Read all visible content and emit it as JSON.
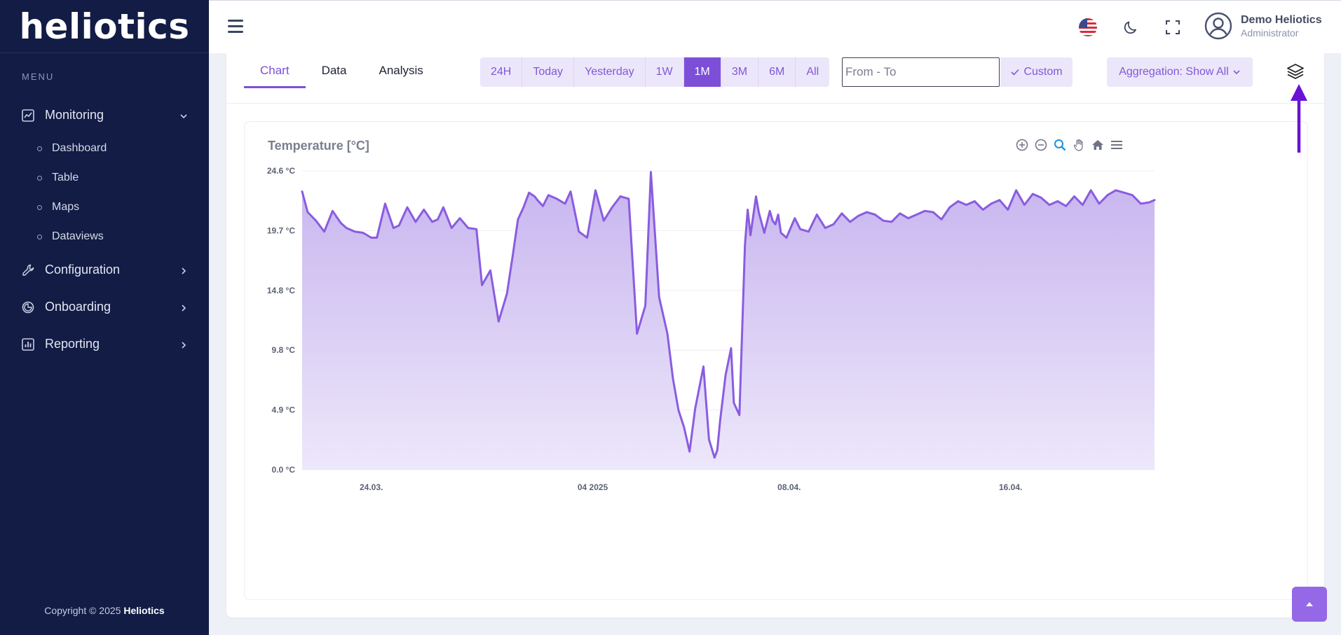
{
  "app": {
    "brand": "heliotics",
    "menu_heading": "MENU",
    "copyright_prefix": "Copyright © 2025 ",
    "copyright_brand": "Heliotics"
  },
  "sidebar": {
    "items": [
      {
        "label": "Monitoring",
        "icon": "chart-line-icon",
        "expanded": true,
        "children": [
          {
            "label": "Dashboard"
          },
          {
            "label": "Table"
          },
          {
            "label": "Maps"
          },
          {
            "label": "Dataviews"
          }
        ]
      },
      {
        "label": "Configuration",
        "icon": "wrench-icon"
      },
      {
        "label": "Onboarding",
        "icon": "onboarding-icon"
      },
      {
        "label": "Reporting",
        "icon": "report-icon"
      }
    ]
  },
  "header": {
    "user_name": "Demo Heliotics",
    "user_role": "Administrator",
    "icons": [
      "menu-icon",
      "us-flag-icon",
      "moon-icon",
      "fullscreen-icon",
      "user-avatar-icon"
    ]
  },
  "tabs": [
    {
      "label": "Chart",
      "active": true
    },
    {
      "label": "Data"
    },
    {
      "label": "Analysis"
    }
  ],
  "ranges": [
    {
      "label": "24H"
    },
    {
      "label": "Today"
    },
    {
      "label": "Yesterday"
    },
    {
      "label": "1W"
    },
    {
      "label": "1M",
      "active": true
    },
    {
      "label": "3M"
    },
    {
      "label": "6M"
    },
    {
      "label": "All"
    }
  ],
  "date_filter": {
    "placeholder": "From - To",
    "value": ""
  },
  "custom_label": "Custom",
  "aggregation_label": "Aggregation: Show All",
  "colors": {
    "accent": "#7d4fd8",
    "sidebar": "#121c45",
    "series": "#8a5ce0",
    "annotation": "#6a12d6"
  },
  "chart_data": {
    "type": "area",
    "title": "Temperature [°C]",
    "ylim": [
      0,
      24.6
    ],
    "y_ticks": [
      "24.6 °C",
      "19.7 °C",
      "14.8 °C",
      "9.8 °C",
      "4.9 °C",
      "0.0 °C"
    ],
    "x_ticks": [
      {
        "label": "24.03.",
        "day": 24
      },
      {
        "label": "04 2025",
        "day": 32
      },
      {
        "label": "08.04.",
        "day": 39.1
      },
      {
        "label": "16.04.",
        "day": 47.1
      }
    ],
    "xlim": [
      21.5,
      52.3
    ],
    "grid": true,
    "series": [
      {
        "x": [
          21.5,
          21.7,
          22.0,
          22.3,
          22.6,
          22.9,
          23.1,
          23.4,
          23.7,
          24.0,
          24.2,
          24.5,
          24.8,
          25.0,
          25.3,
          25.6,
          25.9,
          26.2,
          26.4,
          26.6,
          26.9,
          27.2,
          27.5,
          27.8,
          28.0,
          28.3,
          28.6,
          28.9,
          29.1,
          29.3,
          29.5,
          29.7,
          29.9,
          30.0,
          30.2,
          30.4,
          30.7,
          31.0,
          31.2,
          31.5,
          31.8,
          32.1,
          32.4,
          32.7,
          33.0,
          33.3,
          33.6,
          33.9,
          34.1,
          34.4,
          34.7,
          34.9,
          35.1,
          35.3,
          35.5,
          35.7,
          36.0,
          36.2,
          36.4,
          36.5,
          36.6,
          36.8,
          36.9,
          37.0,
          37.1,
          37.3,
          37.5,
          37.6,
          37.7,
          37.9,
          38.0,
          38.2,
          38.4,
          38.5,
          38.6,
          38.7,
          38.8,
          39.0,
          39.3,
          39.5,
          39.8,
          40.1,
          40.4,
          40.7,
          41.0,
          41.3,
          41.6,
          41.9,
          42.2,
          42.5,
          42.8,
          43.1,
          43.4,
          43.7,
          44.0,
          44.3,
          44.6,
          44.9,
          45.2,
          45.5,
          45.8,
          46.1,
          46.4,
          46.7,
          47.0,
          47.3,
          47.6,
          47.9,
          48.2,
          48.5,
          48.8,
          49.1,
          49.4,
          49.7,
          50.0,
          50.3,
          50.6,
          50.9,
          51.2,
          51.5,
          51.8,
          52.1,
          52.3
        ],
        "y": [
          22.9,
          21.2,
          20.5,
          19.6,
          21.3,
          20.3,
          19.9,
          19.6,
          19.5,
          19.1,
          19.1,
          21.9,
          19.9,
          20.1,
          21.6,
          20.4,
          21.4,
          20.4,
          20.6,
          21.6,
          19.9,
          20.7,
          19.9,
          19.8,
          15.2,
          16.4,
          12.2,
          14.5,
          17.5,
          20.6,
          21.6,
          22.8,
          22.5,
          22.2,
          21.7,
          22.6,
          22.3,
          21.9,
          22.9,
          19.6,
          19.1,
          23.0,
          20.5,
          21.6,
          22.5,
          22.3,
          11.2,
          13.5,
          24.5,
          14.2,
          11.2,
          7.5,
          4.9,
          3.5,
          1.5,
          5.0,
          8.5,
          2.5,
          1.0,
          1.6,
          4.0,
          7.8,
          8.9,
          10.0,
          5.5,
          4.5,
          18.5,
          21.4,
          19.3,
          22.5,
          21.2,
          19.5,
          21.3,
          20.5,
          20.2,
          21.0,
          19.5,
          19.1,
          20.7,
          19.8,
          19.6,
          21.0,
          19.9,
          20.2,
          21.1,
          20.4,
          20.9,
          21.2,
          21.0,
          20.5,
          20.4,
          21.1,
          20.7,
          21.0,
          21.3,
          21.2,
          20.6,
          21.6,
          22.1,
          21.8,
          22.1,
          21.4,
          21.9,
          22.2,
          21.4,
          23.0,
          21.8,
          22.7,
          22.4,
          21.8,
          22.1,
          21.7,
          22.5,
          21.8,
          23.0,
          21.9,
          22.6,
          23.0,
          22.8,
          22.6,
          21.9,
          22.0,
          22.2
        ]
      }
    ]
  }
}
